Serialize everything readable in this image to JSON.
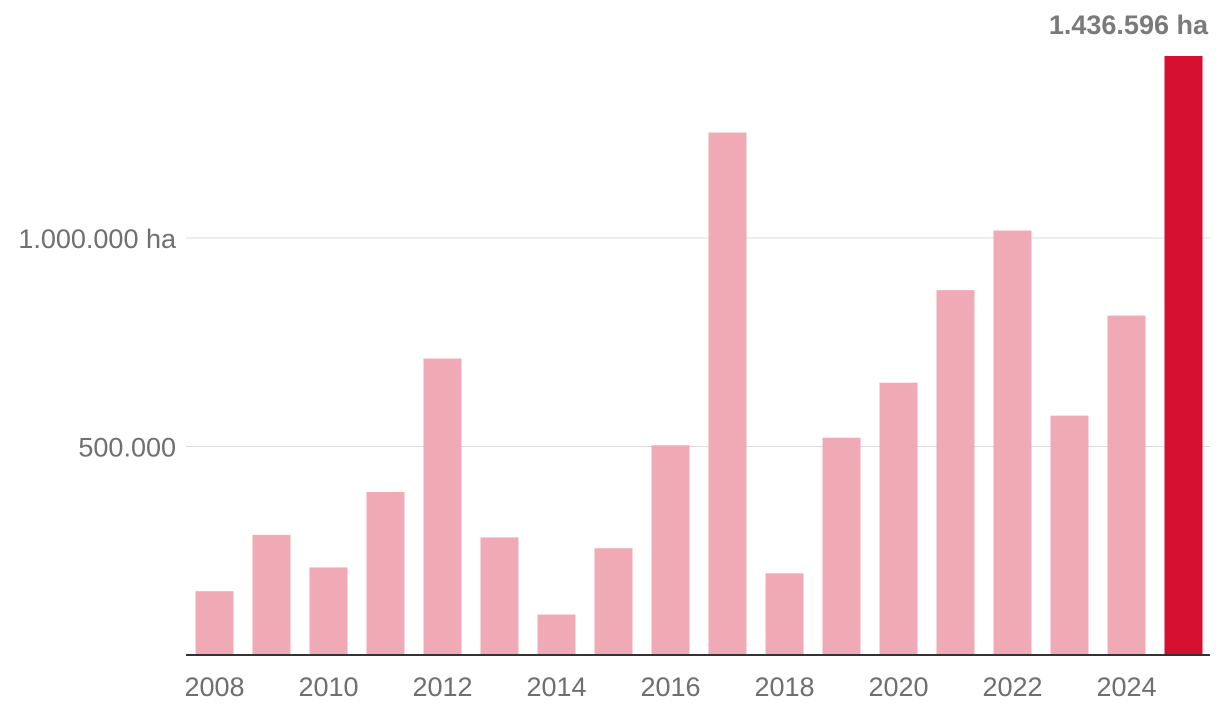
{
  "chart_data": {
    "type": "bar",
    "categories": [
      "2008",
      "2009",
      "2010",
      "2011",
      "2012",
      "2013",
      "2014",
      "2015",
      "2016",
      "2017",
      "2018",
      "2019",
      "2020",
      "2021",
      "2022",
      "2023",
      "2024",
      "2025"
    ],
    "values": [
      153000,
      288000,
      210000,
      391000,
      711000,
      282000,
      97000,
      256000,
      503000,
      1253000,
      196000,
      521000,
      653000,
      875000,
      1018000,
      574000,
      814000,
      1436596
    ],
    "x_tick_labels": [
      "2008",
      "2010",
      "2012",
      "2014",
      "2016",
      "2018",
      "2020",
      "2022",
      "2024"
    ],
    "y_ticks": [
      {
        "value": 500000,
        "label": "500.000"
      },
      {
        "value": 1000000,
        "label": "1.000.000 ha"
      }
    ],
    "ylim": [
      0,
      1436596
    ],
    "highlight_index": 17,
    "highlight_label": "1.436.596 ha",
    "title": "",
    "xlabel": "",
    "ylabel": "",
    "grid": true,
    "colors": {
      "bar": "#efaab5",
      "highlight": "#d50f2f",
      "grid": "#dcdcdc",
      "axis": "#333333",
      "text": "#6f6f6f"
    }
  }
}
